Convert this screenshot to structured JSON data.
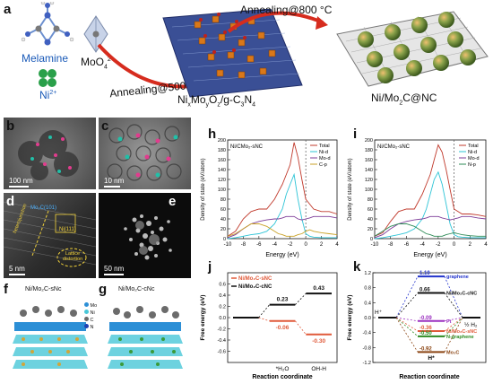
{
  "panels": {
    "a": "a",
    "b": "b",
    "c": "c",
    "d": "d",
    "e": "e",
    "f": "f",
    "g": "g",
    "h": "h",
    "i": "i",
    "j": "j",
    "k": "k"
  },
  "schematic": {
    "melamine_label": "Melamine",
    "ni_label": "Ni",
    "ni_sup": "2+",
    "moo4_label": "MoO",
    "moo4_sub": "4",
    "moo4_sup": "2-",
    "annealing_500": "Annealing@500 °C",
    "annealing_800": "Annealing@800 °C",
    "intermediate_label": "Ni",
    "intermediate_x": "x",
    "intermediate_mo": "Mo",
    "intermediate_y": "y",
    "intermediate_o": "O",
    "intermediate_z": "z",
    "intermediate_rest": "/g-C",
    "intermediate_3": "3",
    "intermediate_n": "N",
    "intermediate_4": "4",
    "product_label": "Ni/Mo",
    "product_2": "2",
    "product_rest": "C@NC"
  },
  "micrographs": {
    "b_scale": "100 nm",
    "c_scale": "10 nm",
    "d_scale": "5 nm",
    "e_scale": "50 nm",
    "d_annot_mo2c": "Mo₂C(101)",
    "d_annot_ni": "Ni(111)",
    "d_annot_junction": "heterojunction",
    "d_annot_lattice": "Lattice\ndistortion",
    "f_title": "Ni/Mo₂C-sNc",
    "g_title": "Ni/Mo₂C-cNc",
    "legend_mo": "Mo",
    "legend_ni": "Ni",
    "legend_c": "C",
    "legend_n": "N"
  },
  "chart_data": [
    {
      "type": "line",
      "panel": "h",
      "title": "Ni/CMo₂-sNC",
      "xlabel": "Energy (eV)",
      "ylabel": "Density of state (eV/atom)",
      "xlim": [
        -10,
        4
      ],
      "ylim": [
        0,
        200
      ],
      "xticks": [
        -10,
        -8,
        -6,
        -4,
        -2,
        0,
        2,
        4
      ],
      "yticks": [
        0,
        20,
        40,
        60,
        80,
        100,
        120,
        140,
        160,
        180,
        200
      ],
      "fermi_level": 0,
      "x": [
        -10,
        -9,
        -8,
        -7,
        -6,
        -5,
        -4,
        -3.5,
        -3,
        -2.5,
        -2,
        -1.5,
        -1,
        -0.5,
        0,
        0.5,
        1,
        2,
        3,
        4
      ],
      "series": [
        {
          "name": "Total",
          "color": "#c0392b",
          "values": [
            5,
            15,
            40,
            55,
            60,
            60,
            80,
            95,
            110,
            130,
            150,
            195,
            165,
            120,
            80,
            70,
            60,
            55,
            55,
            50
          ]
        },
        {
          "name": "Ni-d",
          "color": "#2ec4d6",
          "values": [
            0,
            2,
            5,
            8,
            10,
            15,
            30,
            45,
            60,
            90,
            110,
            130,
            80,
            40,
            10,
            5,
            3,
            2,
            2,
            2
          ]
        },
        {
          "name": "Mo-d",
          "color": "#7d3c98",
          "values": [
            2,
            8,
            20,
            30,
            35,
            38,
            40,
            40,
            42,
            45,
            45,
            45,
            40,
            38,
            40,
            42,
            45,
            45,
            45,
            42
          ]
        },
        {
          "name": "C-p",
          "color": "#c9a227",
          "values": [
            5,
            10,
            20,
            30,
            30,
            25,
            15,
            10,
            8,
            5,
            5,
            5,
            8,
            10,
            15,
            18,
            15,
            12,
            10,
            8
          ]
        }
      ]
    },
    {
      "type": "line",
      "panel": "i",
      "title": "Ni/CMo₂-sNC",
      "xlabel": "Energy (eV)",
      "ylabel": "Density of state (eV/atom)",
      "xlim": [
        -10,
        4
      ],
      "ylim": [
        0,
        200
      ],
      "xticks": [
        -10,
        -8,
        -6,
        -4,
        -2,
        0,
        2,
        4
      ],
      "yticks": [
        0,
        20,
        40,
        60,
        80,
        100,
        120,
        140,
        160,
        180,
        200
      ],
      "fermi_level": 0,
      "x": [
        -10,
        -9,
        -8,
        -7,
        -6,
        -5,
        -4,
        -3.5,
        -3,
        -2.5,
        -2,
        -1.5,
        -1,
        -0.5,
        0,
        0.5,
        1,
        2,
        3,
        4
      ],
      "series": [
        {
          "name": "Total",
          "color": "#c0392b",
          "values": [
            5,
            12,
            35,
            55,
            60,
            60,
            90,
            110,
            130,
            160,
            190,
            175,
            140,
            100,
            60,
            55,
            50,
            50,
            48,
            45
          ]
        },
        {
          "name": "Ni-d",
          "color": "#2ec4d6",
          "values": [
            0,
            2,
            5,
            8,
            12,
            20,
            40,
            60,
            90,
            120,
            135,
            110,
            70,
            30,
            8,
            4,
            3,
            2,
            2,
            2
          ]
        },
        {
          "name": "Mo-d",
          "color": "#7d3c98",
          "values": [
            2,
            8,
            20,
            30,
            35,
            38,
            40,
            42,
            45,
            45,
            45,
            42,
            40,
            38,
            40,
            42,
            45,
            45,
            42,
            40
          ]
        },
        {
          "name": "N-p",
          "color": "#2e8b57",
          "values": [
            5,
            15,
            25,
            30,
            30,
            25,
            15,
            10,
            8,
            5,
            5,
            5,
            8,
            10,
            12,
            10,
            8,
            6,
            5,
            5
          ]
        }
      ]
    },
    {
      "type": "line",
      "panel": "j",
      "xlabel": "Reaction coordinate",
      "ylabel": "Free energy (eV)",
      "ylim": [
        -0.8,
        0.8
      ],
      "yticks": [
        -0.6,
        -0.4,
        -0.2,
        0.0,
        0.2,
        0.4,
        0.6
      ],
      "categories": [
        "",
        "*H₂O",
        "OH-H"
      ],
      "series": [
        {
          "name": "Ni/Mo₂C-sNC",
          "color": "#e05a3a",
          "values": [
            0,
            -0.06,
            -0.3
          ],
          "labels": [
            "",
            "-0.06",
            "-0.30"
          ]
        },
        {
          "name": "Ni/Mo₂C-cNC",
          "color": "#111111",
          "values": [
            0,
            0.23,
            0.43
          ],
          "labels": [
            "",
            "0.23",
            "0.43"
          ]
        }
      ]
    },
    {
      "type": "line",
      "panel": "k",
      "xlabel": "Reaction coordinate",
      "ylabel": "Free energy (eV)",
      "ylim": [
        -1.2,
        1.2
      ],
      "yticks": [
        -1.2,
        -0.8,
        -0.4,
        0.0,
        0.4,
        0.8,
        1.2
      ],
      "categories": [
        "H⁺",
        "H*",
        "½ H₂"
      ],
      "series": [
        {
          "name": "graphene",
          "color": "#2233cc",
          "value": 1.1,
          "label": "1.10"
        },
        {
          "name": "Ni/Mo₂C-cNC",
          "color": "#111111",
          "value": 0.66,
          "label": "0.66"
        },
        {
          "name": "Pt",
          "color": "#9b30c0",
          "value": -0.09,
          "label": "-0.09"
        },
        {
          "name": "Ni/Mo₂C-sNC",
          "color": "#e05a3a",
          "value": -0.36,
          "label": "-0.36"
        },
        {
          "name": "N-graphene",
          "color": "#2e8b22",
          "value": -0.5,
          "label": "-0.50"
        },
        {
          "name": "Mo₂C",
          "color": "#8b4513",
          "value": -0.92,
          "label": "-0.92"
        }
      ],
      "annotations": {
        "h_plus": "H⁺",
        "h_star": "H*",
        "half_h2": "½ H₂"
      }
    }
  ]
}
